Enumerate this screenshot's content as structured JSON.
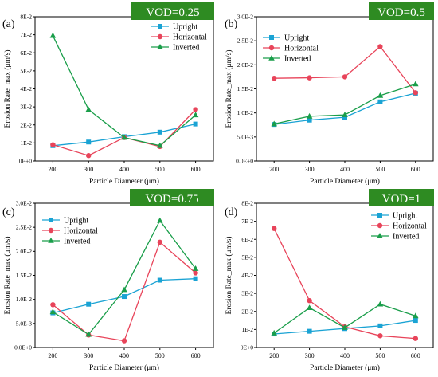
{
  "colors": {
    "upright": "#1aa3d4",
    "horizontal": "#e8445a",
    "inverted": "#1a9e4a",
    "badge_bg": "#2e8b22",
    "badge_text": "#ffffff",
    "axis": "#000000"
  },
  "chart_data": [
    {
      "type": "line",
      "panel_label": "(a)",
      "badge": "VOD=0.25",
      "xlabel": "Particle Diameter (μm)",
      "ylabel": "Erosion Rate_max  (μm/s)",
      "x": [
        200,
        300,
        400,
        500,
        600
      ],
      "xlim": [
        150,
        650
      ],
      "ylim": [
        0,
        0.08
      ],
      "y_ticks": [
        0,
        0.01,
        0.02,
        0.03,
        0.04,
        0.05,
        0.06,
        0.07,
        0.08
      ],
      "y_tick_labels": [
        "0E+0",
        "1E-2",
        "2E-2",
        "3E-2",
        "4E-2",
        "5E-2",
        "6E-2",
        "7E-2",
        "8E-2"
      ],
      "legend_position": "top-right",
      "series": [
        {
          "name": "Upright",
          "key": "upright",
          "marker": "square",
          "values": [
            0.0085,
            0.0105,
            0.0135,
            0.016,
            0.0205
          ]
        },
        {
          "name": "Horizontal",
          "key": "horizontal",
          "marker": "circle",
          "values": [
            0.009,
            0.003,
            0.013,
            0.008,
            0.0285
          ]
        },
        {
          "name": "Inverted",
          "key": "inverted",
          "marker": "triangle",
          "values": [
            0.0695,
            0.0285,
            0.013,
            0.0085,
            0.0255
          ]
        }
      ]
    },
    {
      "type": "line",
      "panel_label": "(b)",
      "badge": "VOD=0.5",
      "xlabel": "Particle Diameter (μm)",
      "ylabel": "Erosion Rate_max  (μm/s)",
      "x": [
        200,
        300,
        400,
        500,
        600
      ],
      "xlim": [
        150,
        650
      ],
      "ylim": [
        0,
        0.03
      ],
      "y_ticks": [
        0,
        0.005,
        0.01,
        0.015,
        0.02,
        0.025,
        0.03
      ],
      "y_tick_labels": [
        "0.0E+0",
        "5.0E-3",
        "1.0E-2",
        "1.5E-2",
        "2.0E-2",
        "2.5E-2",
        "3.0E-2"
      ],
      "legend_position": "top-left",
      "series": [
        {
          "name": "Upright",
          "key": "upright",
          "marker": "square",
          "values": [
            0.0076,
            0.0085,
            0.0091,
            0.0123,
            0.0141
          ]
        },
        {
          "name": "Horizontal",
          "key": "horizontal",
          "marker": "circle",
          "values": [
            0.0172,
            0.0173,
            0.0175,
            0.0238,
            0.0142
          ]
        },
        {
          "name": "Inverted",
          "key": "inverted",
          "marker": "triangle",
          "values": [
            0.0077,
            0.0093,
            0.0096,
            0.0136,
            0.016
          ]
        }
      ]
    },
    {
      "type": "line",
      "panel_label": "(c)",
      "badge": "VOD=0.75",
      "xlabel": "Particle Diameter (μm)",
      "ylabel": "Erosion Rate_max  (μm/s)",
      "x": [
        200,
        300,
        400,
        500,
        600
      ],
      "xlim": [
        150,
        650
      ],
      "ylim": [
        0,
        0.03
      ],
      "y_ticks": [
        0,
        0.005,
        0.01,
        0.015,
        0.02,
        0.025,
        0.03
      ],
      "y_tick_labels": [
        "0.0E+0",
        "5.0E-3",
        "1.0E-2",
        "1.5E-2",
        "2.0E-2",
        "2.5E-2",
        "3.0E-2"
      ],
      "legend_position": "top-left",
      "series": [
        {
          "name": "Upright",
          "key": "upright",
          "marker": "square",
          "values": [
            0.0072,
            0.009,
            0.0106,
            0.014,
            0.0143
          ]
        },
        {
          "name": "Horizontal",
          "key": "horizontal",
          "marker": "circle",
          "values": [
            0.0089,
            0.0026,
            0.0014,
            0.0219,
            0.0155
          ]
        },
        {
          "name": "Inverted",
          "key": "inverted",
          "marker": "triangle",
          "values": [
            0.0074,
            0.0027,
            0.012,
            0.0264,
            0.0164
          ]
        }
      ]
    },
    {
      "type": "line",
      "panel_label": "(d)",
      "badge": "VOD=1",
      "xlabel": "Particle Diameter (μm)",
      "ylabel": "Erosion Rate_max  (μm/s)",
      "x": [
        200,
        300,
        400,
        500,
        600
      ],
      "xlim": [
        150,
        650
      ],
      "ylim": [
        0,
        0.08
      ],
      "y_ticks": [
        0,
        0.01,
        0.02,
        0.03,
        0.04,
        0.05,
        0.06,
        0.07,
        0.08
      ],
      "y_tick_labels": [
        "0E+0",
        "1E-2",
        "2E-2",
        "3E-2",
        "4E-2",
        "5E-2",
        "6E-2",
        "7E-2",
        "8E-2"
      ],
      "legend_position": "top-right",
      "series": [
        {
          "name": "Upright",
          "key": "upright",
          "marker": "square",
          "values": [
            0.0075,
            0.009,
            0.0105,
            0.012,
            0.015
          ]
        },
        {
          "name": "Horizontal",
          "key": "horizontal",
          "marker": "circle",
          "values": [
            0.066,
            0.026,
            0.0115,
            0.0065,
            0.005
          ]
        },
        {
          "name": "Inverted",
          "key": "inverted",
          "marker": "triangle",
          "values": [
            0.008,
            0.022,
            0.011,
            0.024,
            0.0175
          ]
        }
      ]
    }
  ]
}
